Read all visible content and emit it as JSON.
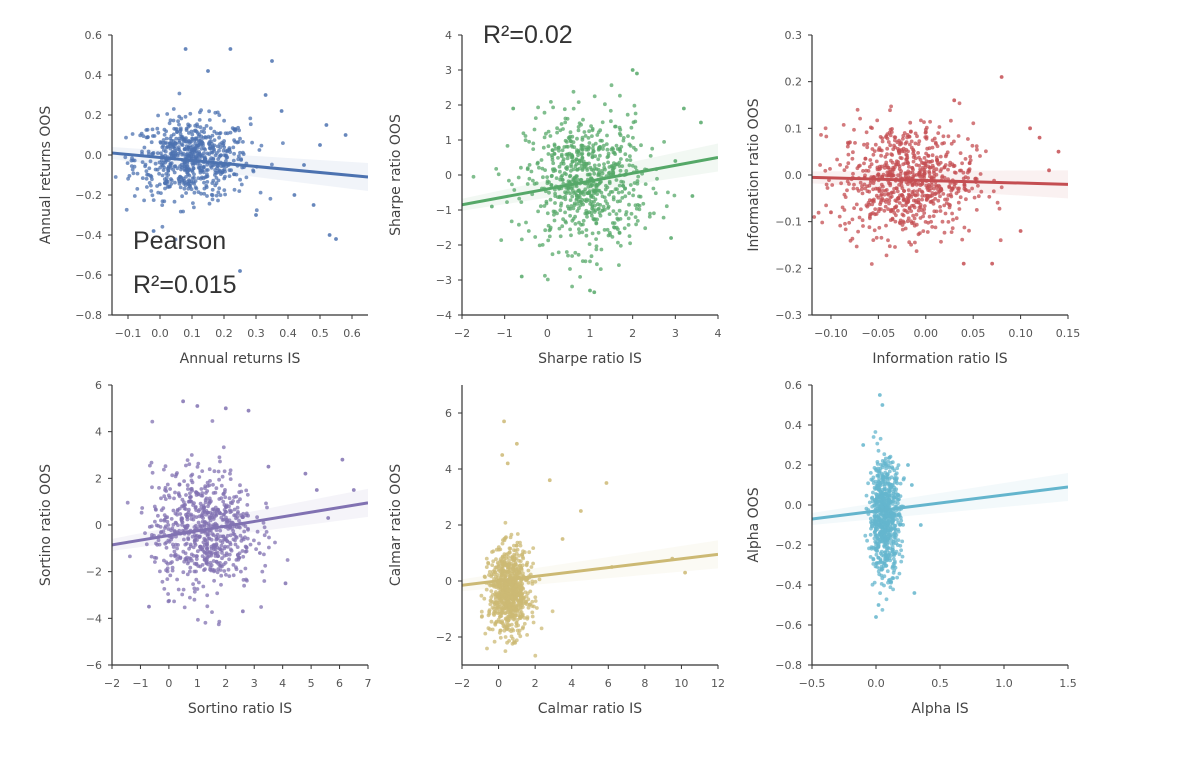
{
  "chart_data": [
    {
      "type": "scatter",
      "title": "",
      "xlabel": "Annual returns IS",
      "ylabel": "Annual returns OOS",
      "color": "#4c72b0",
      "xlim": [
        -0.15,
        0.65
      ],
      "ylim": [
        -0.8,
        0.6
      ],
      "xticks": [
        "−0.1",
        "0.0",
        "0.1",
        "0.2",
        "0.3",
        "0.4",
        "0.5",
        "0.6"
      ],
      "yticks": [
        "0.6",
        "0.4",
        "0.2",
        "0.0",
        "−0.2",
        "−0.4",
        "−0.6",
        "−0.8"
      ],
      "regression": {
        "x": [
          -0.15,
          0.65
        ],
        "y": [
          0.01,
          -0.11
        ]
      },
      "cluster": {
        "x_center": 0.1,
        "x_spread": 0.09,
        "y_center": -0.02,
        "y_spread": 0.1,
        "n": 650
      },
      "points": [
        {
          "x": 0.08,
          "y": 0.53
        },
        {
          "x": 0.22,
          "y": 0.53
        },
        {
          "x": 0.35,
          "y": 0.47
        },
        {
          "x": 0.52,
          "y": 0.15
        },
        {
          "x": 0.58,
          "y": 0.1
        },
        {
          "x": 0.53,
          "y": -0.4
        },
        {
          "x": 0.55,
          "y": -0.42
        },
        {
          "x": 0.25,
          "y": -0.58
        },
        {
          "x": 0.3,
          "y": -0.3
        },
        {
          "x": 0.42,
          "y": -0.2
        },
        {
          "x": 0.48,
          "y": -0.25
        },
        {
          "x": -0.02,
          "y": -0.38
        },
        {
          "x": 0.33,
          "y": 0.3
        },
        {
          "x": 0.38,
          "y": 0.22
        },
        {
          "x": 0.45,
          "y": -0.05
        },
        {
          "x": 0.15,
          "y": 0.42
        },
        {
          "x": 0.5,
          "y": 0.05
        }
      ]
    },
    {
      "type": "scatter",
      "title": "",
      "xlabel": "Sharpe ratio IS",
      "ylabel": "Sharpe ratio OOS",
      "color": "#55a868",
      "xlim": [
        -2,
        4
      ],
      "ylim": [
        -4,
        4
      ],
      "xticks": [
        "−2",
        "−1",
        "0",
        "1",
        "2",
        "3",
        "4"
      ],
      "yticks": [
        "4",
        "3",
        "2",
        "1",
        "0",
        "−1",
        "−2",
        "−3",
        "−4"
      ],
      "regression": {
        "x": [
          -2,
          4
        ],
        "y": [
          -0.85,
          0.5
        ]
      },
      "cluster": {
        "x_center": 0.9,
        "x_spread": 0.7,
        "y_center": -0.2,
        "y_spread": 0.95,
        "n": 700
      },
      "points": [
        {
          "x": 2.0,
          "y": 3.0
        },
        {
          "x": 2.1,
          "y": 2.9
        },
        {
          "x": 1.0,
          "y": -3.3
        },
        {
          "x": 1.1,
          "y": -3.35
        },
        {
          "x": -0.8,
          "y": 1.9
        },
        {
          "x": -0.6,
          "y": -2.9
        },
        {
          "x": 3.2,
          "y": 1.9
        },
        {
          "x": 3.6,
          "y": 1.5
        },
        {
          "x": 3.0,
          "y": 0.4
        },
        {
          "x": 2.9,
          "y": -1.8
        },
        {
          "x": -1.3,
          "y": -0.9
        },
        {
          "x": 3.4,
          "y": -0.6
        }
      ]
    },
    {
      "type": "scatter",
      "title": "",
      "xlabel": "Information ratio IS",
      "ylabel": "Information ratio OOS",
      "color": "#c44e52",
      "xlim": [
        -0.12,
        0.15
      ],
      "ylim": [
        -0.3,
        0.3
      ],
      "xticks": [
        "−0.10",
        "−0.05",
        "0.00",
        "0.05",
        "0.10",
        "0.15"
      ],
      "yticks": [
        "0.3",
        "0.2",
        "0.1",
        "0.0",
        "−0.1",
        "−0.2",
        "−0.3"
      ],
      "regression": {
        "x": [
          -0.12,
          0.15
        ],
        "y": [
          -0.005,
          -0.02
        ]
      },
      "cluster": {
        "x_center": -0.02,
        "x_spread": 0.035,
        "y_center": -0.01,
        "y_spread": 0.06,
        "n": 750
      },
      "points": [
        {
          "x": 0.08,
          "y": 0.21
        },
        {
          "x": 0.03,
          "y": 0.16
        },
        {
          "x": 0.12,
          "y": 0.08
        },
        {
          "x": 0.14,
          "y": 0.05
        },
        {
          "x": 0.13,
          "y": 0.01
        },
        {
          "x": 0.07,
          "y": -0.19
        },
        {
          "x": 0.04,
          "y": -0.19
        },
        {
          "x": -0.1,
          "y": -0.08
        },
        {
          "x": -0.08,
          "y": 0.07
        },
        {
          "x": 0.1,
          "y": -0.12
        },
        {
          "x": 0.11,
          "y": 0.1
        }
      ]
    },
    {
      "type": "scatter",
      "title": "",
      "xlabel": "Sortino ratio IS",
      "ylabel": "Sortino ratio OOS",
      "color": "#8172b2",
      "xlim": [
        -2,
        7
      ],
      "ylim": [
        -6,
        6
      ],
      "xticks": [
        "−2",
        "−1",
        "0",
        "1",
        "2",
        "3",
        "4",
        "5",
        "6",
        "7"
      ],
      "yticks": [
        "6",
        "4",
        "2",
        "0",
        "−2",
        "−4",
        "−6"
      ],
      "regression": {
        "x": [
          -2,
          7
        ],
        "y": [
          -0.85,
          0.95
        ]
      },
      "cluster": {
        "x_center": 1.2,
        "x_spread": 0.9,
        "y_center": -0.2,
        "y_spread": 1.3,
        "n": 700
      },
      "points": [
        {
          "x": 0.5,
          "y": 5.3
        },
        {
          "x": 1.0,
          "y": 5.1
        },
        {
          "x": 2.0,
          "y": 5.0
        },
        {
          "x": 2.8,
          "y": 4.9
        },
        {
          "x": 6.5,
          "y": 1.5
        },
        {
          "x": 6.1,
          "y": 2.8
        },
        {
          "x": 5.2,
          "y": 1.5
        },
        {
          "x": 5.6,
          "y": 0.3
        },
        {
          "x": -0.7,
          "y": -3.5
        },
        {
          "x": 4.1,
          "y": -2.5
        },
        {
          "x": 4.8,
          "y": 2.2
        },
        {
          "x": 3.5,
          "y": 2.5
        },
        {
          "x": 3.2,
          "y": -1.2
        },
        {
          "x": 2.6,
          "y": -3.7
        }
      ]
    },
    {
      "type": "scatter",
      "title": "",
      "xlabel": "Calmar ratio IS",
      "ylabel": "Calmar ratio OOS",
      "color": "#ccb974",
      "xlim": [
        -2,
        12
      ],
      "ylim": [
        -3,
        7
      ],
      "xticks": [
        "−2",
        "0",
        "2",
        "4",
        "6",
        "8",
        "10",
        "12"
      ],
      "yticks": [
        "6",
        "4",
        "2",
        "0",
        "−2"
      ],
      "regression": {
        "x": [
          -2,
          12
        ],
        "y": [
          -0.15,
          0.95
        ]
      },
      "cluster": {
        "x_center": 0.6,
        "x_spread": 0.55,
        "y_center": -0.4,
        "y_spread": 0.75,
        "n": 800
      },
      "points": [
        {
          "x": 0.3,
          "y": 5.7
        },
        {
          "x": 1.0,
          "y": 4.9
        },
        {
          "x": 0.2,
          "y": 4.5
        },
        {
          "x": 0.5,
          "y": 4.2
        },
        {
          "x": 5.9,
          "y": 3.5
        },
        {
          "x": 4.5,
          "y": 2.5
        },
        {
          "x": 6.2,
          "y": 0.5
        },
        {
          "x": 10.2,
          "y": 0.3
        },
        {
          "x": 9.5,
          "y": 0.8
        },
        {
          "x": 2.8,
          "y": 3.6
        },
        {
          "x": 3.5,
          "y": 1.5
        }
      ]
    },
    {
      "type": "scatter",
      "title": "",
      "xlabel": "Alpha IS",
      "ylabel": "Alpha OOS",
      "color": "#64b5cd",
      "xlim": [
        -0.5,
        1.5
      ],
      "ylim": [
        -0.8,
        0.6
      ],
      "xticks": [
        "−0.5",
        "0.0",
        "0.5",
        "1.0",
        "1.5"
      ],
      "yticks": [
        "0.6",
        "0.4",
        "0.2",
        "0.0",
        "−0.2",
        "−0.4",
        "−0.6",
        "−0.8"
      ],
      "regression": {
        "x": [
          -0.5,
          1.5
        ],
        "y": [
          -0.07,
          0.09
        ]
      },
      "cluster": {
        "x_center": 0.07,
        "x_spread": 0.06,
        "y_center": -0.06,
        "y_spread": 0.14,
        "n": 700
      },
      "points": [
        {
          "x": 0.03,
          "y": 0.55
        },
        {
          "x": 0.05,
          "y": 0.5
        },
        {
          "x": 0.0,
          "y": -0.56
        },
        {
          "x": 0.02,
          "y": -0.5
        },
        {
          "x": 0.3,
          "y": -0.44
        },
        {
          "x": 0.25,
          "y": 0.2
        },
        {
          "x": -0.1,
          "y": 0.3
        },
        {
          "x": 0.35,
          "y": -0.1
        },
        {
          "x": 0.28,
          "y": 0.1
        }
      ]
    }
  ],
  "annotations": {
    "pearson": "Pearson",
    "r2_first": "R²=0.015",
    "r2_second": "R²=0.02"
  }
}
